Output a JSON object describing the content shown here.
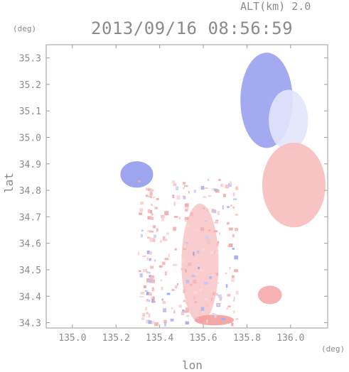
{
  "header": {
    "altitude": "ALT(km) 2.0",
    "timestamp": "2013/09/16 08:56:59"
  },
  "axes": {
    "y_unit": "(deg)",
    "x_unit": "(deg)",
    "y_label": "lat",
    "x_label": "lon"
  },
  "chart_data": {
    "type": "heatmap",
    "title": "2013/09/16 08:56:59",
    "subtitle": "ALT(km) 2.0",
    "xlabel": "lon",
    "ylabel": "lat",
    "x_unit": "(deg)",
    "y_unit": "(deg)",
    "xlim": [
      134.88,
      136.17
    ],
    "ylim": [
      34.28,
      35.35
    ],
    "x_ticks": [
      135.0,
      135.2,
      135.4,
      135.6,
      135.8,
      136.0
    ],
    "x_tick_labels": [
      "135.0",
      "135.2",
      "135.4",
      "135.6",
      "135.8",
      "136.0"
    ],
    "y_ticks": [
      34.3,
      34.4,
      34.5,
      34.6,
      34.7,
      34.8,
      34.9,
      35.0,
      35.1,
      35.2,
      35.3
    ],
    "y_tick_labels": [
      "34.3",
      "34.4",
      "34.5",
      "34.6",
      "34.7",
      "34.8",
      "34.9",
      "35.0",
      "35.1",
      "35.2",
      "35.3"
    ],
    "grid": false,
    "colors": {
      "approaching": "#6f78e6",
      "receding": "#f08585",
      "neutral": "#f4f4f8"
    },
    "regions": [
      {
        "name": "north-blue-sector",
        "sign": "negative",
        "lon": [
          135.77,
          136.01
        ],
        "lat": [
          34.96,
          35.32
        ],
        "intensity": 0.7
      },
      {
        "name": "north-pale-sector",
        "sign": "negative",
        "lon": [
          135.9,
          136.08
        ],
        "lat": [
          34.95,
          35.18
        ],
        "intensity": 0.2
      },
      {
        "name": "east-red-sector",
        "sign": "positive",
        "lon": [
          135.87,
          136.16
        ],
        "lat": [
          34.66,
          34.98
        ],
        "intensity": 0.55
      },
      {
        "name": "west-blue-patch",
        "sign": "negative",
        "lon": [
          135.22,
          135.37
        ],
        "lat": [
          34.81,
          34.91
        ],
        "intensity": 0.75
      },
      {
        "name": "central-red-band",
        "sign": "positive",
        "lon": [
          135.5,
          135.67
        ],
        "lat": [
          34.3,
          34.75
        ],
        "intensity": 0.45
      },
      {
        "name": "south-east-red-blob",
        "sign": "positive",
        "lon": [
          135.85,
          135.96
        ],
        "lat": [
          34.37,
          34.44
        ],
        "intensity": 0.7
      },
      {
        "name": "south-red-edge",
        "sign": "positive",
        "lon": [
          135.56,
          135.74
        ],
        "lat": [
          34.29,
          34.33
        ],
        "intensity": 0.8
      }
    ]
  }
}
